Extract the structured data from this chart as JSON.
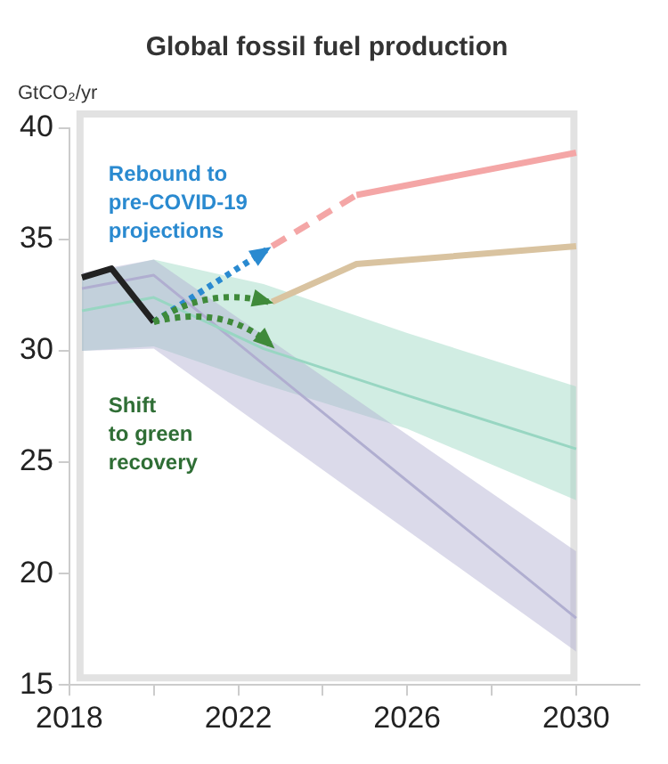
{
  "chart_data": {
    "type": "line",
    "title": "Global fossil fuel production",
    "ylabel": "GtCO₂/yr",
    "xlim": [
      2018,
      2031.5
    ],
    "ylim": [
      15,
      40
    ],
    "xticks": [
      2018,
      {
        "value": 2020,
        "label": null
      },
      2022,
      {
        "value": 2024,
        "label": null
      },
      2026,
      {
        "value": 2028,
        "label": null
      },
      2030
    ],
    "yticks": [
      15,
      20,
      25,
      30,
      35,
      40
    ],
    "grid": false,
    "legend": false,
    "marker": "none",
    "annotations": [
      "Rebound to\npre-COVID-19\nprojections",
      "Shift\nto green\nrecovery"
    ],
    "series": [
      {
        "color": "#b0aed0",
        "x": [
          2018.3,
          2020,
          2030
        ],
        "values": [
          32.8,
          33.4,
          18.0
        ],
        "lower": [
          30.0,
          30.1,
          16.5
        ],
        "upper": [
          33.5,
          34.1,
          21.0
        ]
      },
      {
        "color": "#98d6c2",
        "x": [
          2018.3,
          2020,
          2022.6,
          2026,
          2030
        ],
        "values": [
          31.8,
          32.4,
          30.1,
          28.0,
          25.6
        ],
        "lower": [
          30.0,
          30.2,
          28.5,
          26.5,
          23.3
        ],
        "upper": [
          33.4,
          34.1,
          33.0,
          30.8,
          28.4
        ]
      },
      {
        "color": "#d9c3a0",
        "x": [
          2022.8,
          2024.8,
          2030
        ],
        "values": [
          32.2,
          33.9,
          34.7
        ]
      },
      {
        "color": "#f4a6a6",
        "line_style": "dashed",
        "x": [
          2022.8,
          2024.8
        ],
        "values": [
          34.7,
          37.0
        ]
      },
      {
        "color": "#f4a6a6",
        "x": [
          2024.8,
          2030
        ],
        "values": [
          37.0,
          38.9
        ]
      },
      {
        "color": "#222222",
        "x": [
          2018.3,
          2019,
          2020
        ],
        "values": [
          33.3,
          33.7,
          31.3
        ]
      }
    ]
  }
}
